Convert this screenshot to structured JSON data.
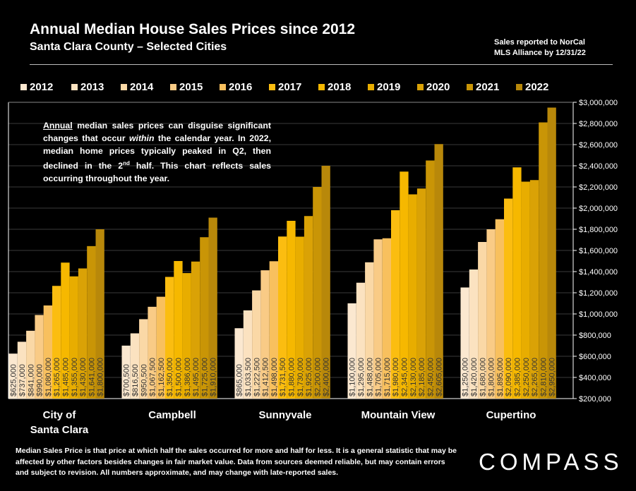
{
  "header": {
    "title": "Annual Median House Sales Prices since 2012",
    "subtitle": "Santa Clara County – Selected Cities",
    "note_line1": "Sales reported to NorCal",
    "note_line2": "MLS Alliance by 12/31/22"
  },
  "annotation": {
    "word_annual": "Annual",
    "text1": " median sales prices can disguise significant changes that occur ",
    "word_within": "within",
    "text2": " the calendar year. In 2022, median home prices typically peaked in Q2, then declined in the 2",
    "sup": "nd",
    "text3": " half. This chart reflects sales occurring throughout the year."
  },
  "footer": {
    "text": "Median Sales Price is that price at which half the sales occurred for more and half for less. It is a general statistic that may be affected by other factors besides changes in fair market value. Data from sources deemed reliable, but may contain errors and subject to revision.  All numbers approximate, and may change with late-reported sales."
  },
  "logo": "COMPASS",
  "chart_data": {
    "type": "bar",
    "y_tick_labels": [
      "$200,000",
      "$400,000",
      "$600,000",
      "$800,000",
      "$1,000,000",
      "$1,200,000",
      "$1,400,000",
      "$1,600,000",
      "$1,800,000",
      "$2,000,000",
      "$2,200,000",
      "$2,400,000",
      "$2,600,000",
      "$2,800,000",
      "$3,000,000"
    ],
    "ylim": [
      200000,
      3000000
    ],
    "legend_position": "top",
    "categories": [
      "City of Santa Clara",
      "Campbell",
      "Sunnyvale",
      "Mountain View",
      "Cupertino"
    ],
    "category_lines": [
      [
        "City of",
        "Santa Clara"
      ],
      [
        "Campbell"
      ],
      [
        "Sunnyvale"
      ],
      [
        "Mountain View"
      ],
      [
        "Cupertino"
      ]
    ],
    "series": [
      {
        "name": "2012",
        "color": "#fbe8d0",
        "values": [
          625000,
          700500,
          865000,
          1100000,
          1250000
        ]
      },
      {
        "name": "2013",
        "color": "#fbe2c0",
        "values": [
          737000,
          816500,
          1033500,
          1295000,
          1420000
        ]
      },
      {
        "name": "2014",
        "color": "#fad8a6",
        "values": [
          841000,
          950500,
          1222500,
          1488000,
          1680000
        ]
      },
      {
        "name": "2015",
        "color": "#f9cb86",
        "values": [
          990000,
          1067500,
          1412500,
          1705000,
          1800000
        ]
      },
      {
        "name": "2016",
        "color": "#f8c05e",
        "values": [
          1080000,
          1162500,
          1498000,
          1715000,
          1895000
        ]
      },
      {
        "name": "2017",
        "color": "#fbbd10",
        "values": [
          1265000,
          1350000,
          1731500,
          1980000,
          2090000
        ]
      },
      {
        "name": "2018",
        "color": "#f6b800",
        "values": [
          1485000,
          1500000,
          1880000,
          2345000,
          2385000
        ]
      },
      {
        "name": "2019",
        "color": "#e8ad00",
        "values": [
          1355000,
          1386000,
          1730000,
          2130000,
          2250000
        ]
      },
      {
        "name": "2020",
        "color": "#daa206",
        "values": [
          1430000,
          1495000,
          1925000,
          2185000,
          2265000
        ]
      },
      {
        "name": "2021",
        "color": "#c99506",
        "values": [
          1641000,
          1725000,
          2200000,
          2450000,
          2810000
        ]
      },
      {
        "name": "2022",
        "color": "#b8880a",
        "values": [
          1800000,
          1910000,
          2400000,
          2605000,
          2950000
        ]
      }
    ],
    "data_labels": [
      [
        "$625,000",
        "$737,000",
        "$841,000",
        "$990,000",
        "$1,080,000",
        "$1,265,000",
        "$1,485,000",
        "$1,355,000",
        "$1,430,000",
        "$1,641,000",
        "$1,800,000"
      ],
      [
        "$700,500",
        "$816,500",
        "$950,500",
        "$1,067,500",
        "$1,162,500",
        "$1,350,000",
        "$1,500,000",
        "$1,386,000",
        "$1,495,000",
        "$1,725,000",
        "$1,910,000"
      ],
      [
        "$865,000",
        "$1,033,500",
        "$1,222,500",
        "$1,412,500",
        "$1,498,000",
        "$1,731,500",
        "$1,880,000",
        "$1,730,000",
        "$1,925,000",
        "$2,200,000",
        "$2,400,000"
      ],
      [
        "$1,100,000",
        "$1,295,000",
        "$1,488,000",
        "$1,705,000",
        "$1,715,000",
        "$1,980,000",
        "$2,345,000",
        "$2,130,000",
        "$2,185,000",
        "$2,450,000",
        "$2,605,000"
      ],
      [
        "$1,250,000",
        "$1,420,000",
        "$1,680,000",
        "$1,800,000",
        "$1,895,000",
        "$2,090,000",
        "$2,385,000",
        "$2,250,000",
        "$2,265,000",
        "$2,810,000",
        "$2,950,000"
      ]
    ]
  }
}
